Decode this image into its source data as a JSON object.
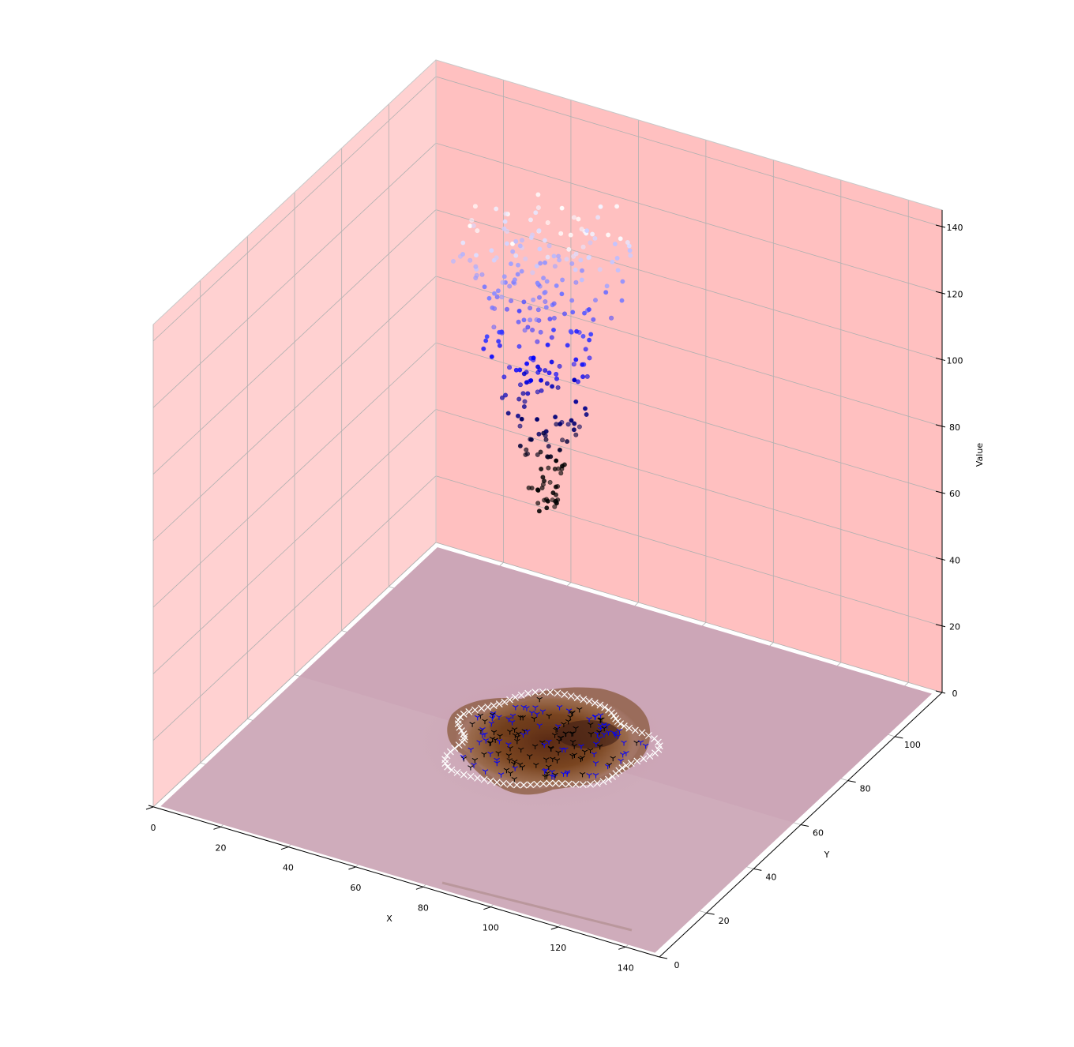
{
  "chart_data": {
    "type": "scatter",
    "projection": "3d",
    "title": "",
    "xlabel": "X",
    "ylabel": "Y",
    "zlabel": "Value",
    "xlim": [
      0,
      150
    ],
    "ylim": [
      0,
      120
    ],
    "zlim": [
      0,
      145
    ],
    "xticks": [
      "0",
      "20",
      "40",
      "60",
      "80",
      "100",
      "120",
      "140"
    ],
    "yticks": [
      "0",
      "20",
      "40",
      "60",
      "80",
      "100"
    ],
    "zticks": [
      "0",
      "20",
      "40",
      "60",
      "80",
      "100",
      "120",
      "140"
    ],
    "pane_color": "#ffc0c0",
    "grid": true,
    "floor_image": "dermoscopy skin image with brown pigmented lesion, plotted on the z=0 plane",
    "marker_styles": {
      "boundary_points": "white x markers",
      "interior_points_blue": "blue tri-down markers",
      "interior_points_black": "black tri-down markers",
      "values": "circles coloured on a black-blue-white colormap by value"
    },
    "colors": {
      "black": "#000000",
      "blue": "#0000ff",
      "white": "#ffffff"
    }
  }
}
